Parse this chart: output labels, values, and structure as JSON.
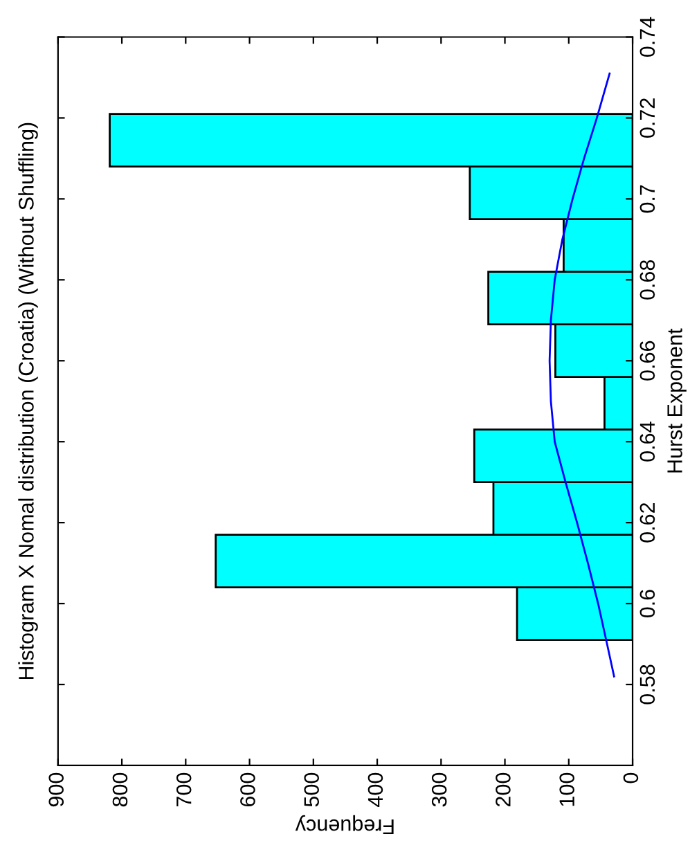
{
  "chart_data": {
    "type": "histogram",
    "orientation": "horizontal",
    "title": "Histogram X Nomal distribution (Croatia) (Without Shuffling)",
    "xlabel": "Frequency",
    "ylabel": "Hurst Exponent",
    "series": [
      {
        "color": "#00ffff",
        "bins": [
          0.591,
          0.604,
          0.617,
          0.63,
          0.643,
          0.656,
          0.669,
          0.682,
          0.695,
          0.708,
          0.721
        ],
        "values": [
          181,
          653,
          218,
          248,
          44,
          121,
          226,
          108,
          255,
          819
        ]
      },
      {
        "type": "line",
        "color": "#0000ff",
        "x": [
          0.582,
          0.59,
          0.6,
          0.61,
          0.62,
          0.63,
          0.64,
          0.65,
          0.66,
          0.67,
          0.68,
          0.69,
          0.7,
          0.71,
          0.72,
          0.731
        ],
        "values": [
          29,
          40,
          54,
          70,
          87,
          105,
          122,
          128,
          130,
          128,
          122,
          110,
          94,
          76,
          56,
          36
        ]
      }
    ],
    "xlim": [
      900,
      0
    ],
    "xticks": [
      900,
      800,
      700,
      600,
      500,
      400,
      300,
      200,
      100,
      0
    ],
    "ylim": [
      0.56,
      0.74
    ],
    "yticks": [
      0.58,
      0.6,
      0.62,
      0.64,
      0.66,
      0.68,
      0.7,
      0.72,
      0.74
    ],
    "grid": false,
    "legend": false
  }
}
